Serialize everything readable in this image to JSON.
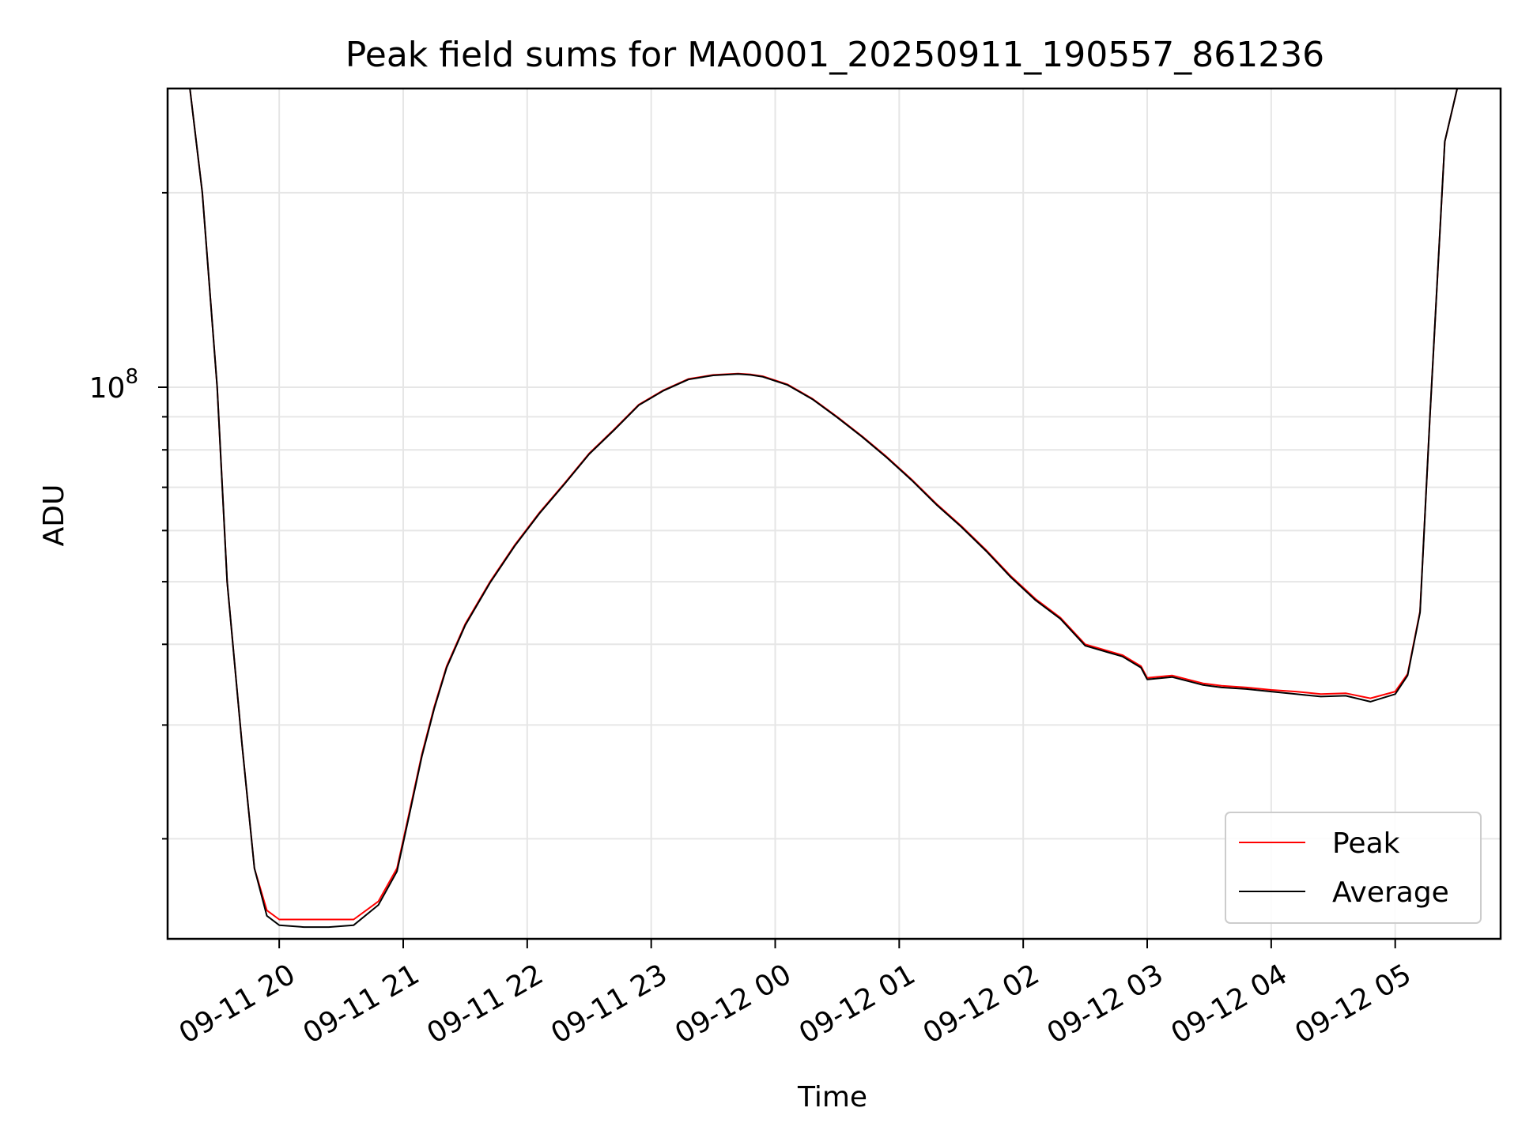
{
  "chart_data": {
    "type": "line",
    "title": "Peak field sums for MA0001_20250911_190557_861236",
    "xlabel": "Time",
    "ylabel": "ADU",
    "yscale": "log",
    "ylim": [
      14000000,
      290000000
    ],
    "xlim_hours": [
      -0.9,
      9.85
    ],
    "grid": true,
    "legend_position": "lower right",
    "x_tick_labels": [
      "09-11 20",
      "09-11 21",
      "09-11 22",
      "09-11 23",
      "09-12 00",
      "09-12 01",
      "09-12 02",
      "09-12 03",
      "09-12 04",
      "09-12 05"
    ],
    "y_tick_label": {
      "base": "10",
      "exponent": "8"
    },
    "series": [
      {
        "name": "Peak",
        "color": "#ff0000",
        "x_hours": [
          -0.9,
          -0.72,
          -0.62,
          -0.5,
          -0.42,
          -0.3,
          -0.2,
          -0.1,
          0.0,
          0.2,
          0.4,
          0.6,
          0.8,
          0.95,
          1.05,
          1.15,
          1.25,
          1.35,
          1.5,
          1.7,
          1.9,
          2.1,
          2.3,
          2.5,
          2.7,
          2.9,
          3.1,
          3.3,
          3.5,
          3.7,
          3.8,
          3.9,
          4.1,
          4.3,
          4.5,
          4.7,
          4.9,
          5.1,
          5.3,
          5.5,
          5.7,
          5.9,
          6.1,
          6.3,
          6.5,
          6.8,
          6.95,
          7.0,
          7.2,
          7.4,
          7.45,
          7.6,
          7.8,
          8.0,
          8.2,
          8.4,
          8.6,
          8.8,
          9.0,
          9.1,
          9.2,
          9.28,
          9.4,
          9.5,
          9.6,
          9.85
        ],
        "values": [
          290000000,
          290000000,
          200000000,
          100000000,
          50000000,
          28000000,
          18000000,
          15500000,
          15000000,
          15000000,
          15000000,
          15000000,
          16000000,
          18000000,
          22000000,
          27000000,
          32000000,
          37000000,
          43000000,
          50000000,
          57000000,
          64000000,
          71000000,
          79000000,
          86000000,
          94000000,
          99000000,
          103000000,
          104500000,
          105000000,
          104700000,
          104000000,
          101000000,
          96000000,
          90000000,
          84000000,
          78000000,
          72000000,
          66000000,
          61000000,
          56000000,
          51000000,
          47000000,
          44000000,
          40000000,
          38500000,
          37000000,
          35500000,
          35800000,
          35000000,
          34800000,
          34500000,
          34300000,
          34000000,
          33800000,
          33500000,
          33600000,
          33000000,
          33800000,
          36000000,
          45000000,
          90000000,
          240000000,
          290000000,
          290000000,
          290000000
        ]
      },
      {
        "name": "Average",
        "color": "#000000",
        "x_hours": [
          -0.9,
          -0.72,
          -0.62,
          -0.5,
          -0.42,
          -0.3,
          -0.2,
          -0.1,
          0.0,
          0.2,
          0.4,
          0.6,
          0.8,
          0.95,
          1.05,
          1.15,
          1.25,
          1.35,
          1.5,
          1.7,
          1.9,
          2.1,
          2.3,
          2.5,
          2.7,
          2.9,
          3.1,
          3.3,
          3.5,
          3.7,
          3.8,
          3.9,
          4.1,
          4.3,
          4.5,
          4.7,
          4.9,
          5.1,
          5.3,
          5.5,
          5.7,
          5.9,
          6.1,
          6.3,
          6.5,
          6.8,
          6.95,
          7.0,
          7.2,
          7.4,
          7.45,
          7.6,
          7.8,
          8.0,
          8.2,
          8.4,
          8.6,
          8.8,
          9.0,
          9.1,
          9.2,
          9.28,
          9.4,
          9.5,
          9.6,
          9.85
        ],
        "values": [
          290000000,
          290000000,
          200000000,
          100000000,
          50000000,
          28000000,
          18000000,
          15200000,
          14700000,
          14600000,
          14600000,
          14700000,
          15800000,
          17800000,
          21800000,
          26800000,
          31800000,
          36800000,
          42800000,
          49800000,
          56800000,
          63800000,
          70800000,
          78800000,
          85800000,
          93800000,
          98800000,
          102800000,
          104300000,
          104800000,
          104500000,
          103800000,
          100800000,
          95800000,
          89800000,
          83800000,
          77800000,
          71800000,
          65800000,
          60800000,
          55800000,
          50800000,
          46800000,
          43800000,
          39800000,
          38300000,
          36800000,
          35300000,
          35600000,
          34800000,
          34600000,
          34300000,
          34100000,
          33800000,
          33500000,
          33200000,
          33300000,
          32600000,
          33500000,
          35800000,
          44800000,
          90000000,
          240000000,
          290000000,
          290000000,
          290000000
        ]
      }
    ]
  }
}
